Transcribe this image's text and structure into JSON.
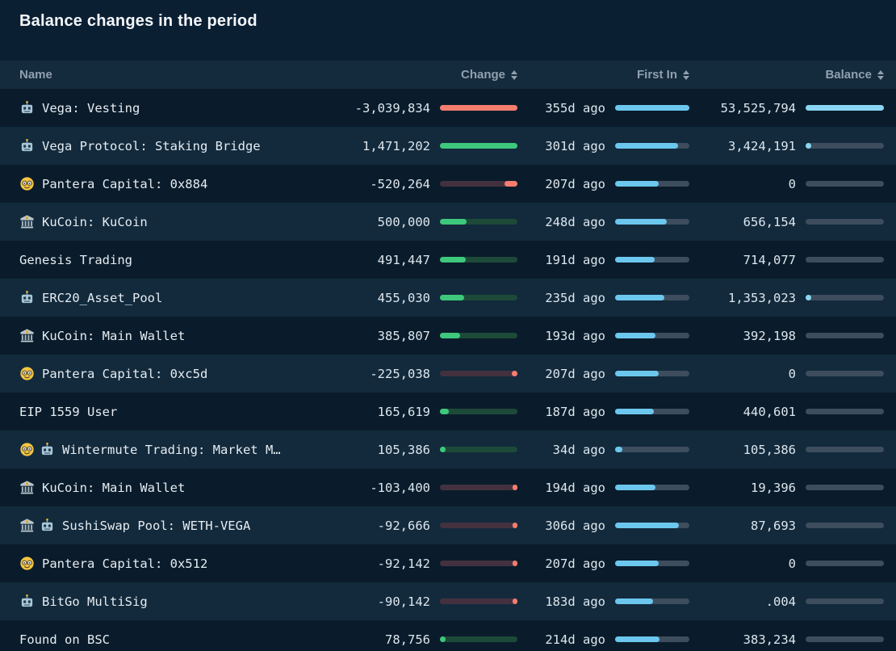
{
  "title": "Balance changes in the period",
  "header": {
    "name": "Name",
    "change": "Change",
    "first_in": "First In",
    "balance": "Balance"
  },
  "colors": {
    "background": "#0b1f33",
    "row_odd": "#0a1c2b",
    "row_even": "#122a3c",
    "header_row": "#142a3d",
    "positive_fill": "#3ec87c",
    "positive_track": "#1d4a38",
    "negative_fill": "#f57d6f",
    "negative_track": "#44313f",
    "first_in_fill": "#6cc7ee",
    "balance_fill": "#8ad5f3",
    "bar_track": "#3d4d5d"
  },
  "table": {
    "scales": {
      "max_positive_change": 1471202,
      "max_negative_change": 3039834,
      "max_first_in_days": 355,
      "max_balance": 53525794
    },
    "rows": [
      {
        "icons": [
          "robot-icon"
        ],
        "name": "Vega: Vesting",
        "change": "-3,039,834",
        "change_value": -3039834,
        "first_in": "355d ago",
        "first_in_days": 355,
        "balance": "53,525,794",
        "balance_value": 53525794
      },
      {
        "icons": [
          "robot-icon"
        ],
        "name": "Vega Protocol: Staking Bridge",
        "change": "1,471,202",
        "change_value": 1471202,
        "first_in": "301d ago",
        "first_in_days": 301,
        "balance": "3,424,191",
        "balance_value": 3424191
      },
      {
        "icons": [
          "nerd-face-icon"
        ],
        "name": "Pantera Capital: 0x884",
        "change": "-520,264",
        "change_value": -520264,
        "first_in": "207d ago",
        "first_in_days": 207,
        "balance": "0",
        "balance_value": 0
      },
      {
        "icons": [
          "bank-icon"
        ],
        "name": "KuCoin: KuCoin",
        "change": "500,000",
        "change_value": 500000,
        "first_in": "248d ago",
        "first_in_days": 248,
        "balance": "656,154",
        "balance_value": 656154
      },
      {
        "icons": [],
        "name": "Genesis Trading",
        "change": "491,447",
        "change_value": 491447,
        "first_in": "191d ago",
        "first_in_days": 191,
        "balance": "714,077",
        "balance_value": 714077
      },
      {
        "icons": [
          "robot-icon"
        ],
        "name": "ERC20_Asset_Pool",
        "change": "455,030",
        "change_value": 455030,
        "first_in": "235d ago",
        "first_in_days": 235,
        "balance": "1,353,023",
        "balance_value": 1353023
      },
      {
        "icons": [
          "bank-icon"
        ],
        "name": "KuCoin: Main Wallet",
        "change": "385,807",
        "change_value": 385807,
        "first_in": "193d ago",
        "first_in_days": 193,
        "balance": "392,198",
        "balance_value": 392198
      },
      {
        "icons": [
          "nerd-face-icon"
        ],
        "name": "Pantera Capital: 0xc5d",
        "change": "-225,038",
        "change_value": -225038,
        "first_in": "207d ago",
        "first_in_days": 207,
        "balance": "0",
        "balance_value": 0
      },
      {
        "icons": [],
        "name": "EIP 1559 User",
        "change": "165,619",
        "change_value": 165619,
        "first_in": "187d ago",
        "first_in_days": 187,
        "balance": "440,601",
        "balance_value": 440601
      },
      {
        "icons": [
          "nerd-face-icon",
          "robot-icon"
        ],
        "name": "Wintermute Trading: Market M…",
        "change": "105,386",
        "change_value": 105386,
        "first_in": "34d ago",
        "first_in_days": 34,
        "balance": "105,386",
        "balance_value": 105386
      },
      {
        "icons": [
          "bank-icon"
        ],
        "name": "KuCoin: Main Wallet",
        "change": "-103,400",
        "change_value": -103400,
        "first_in": "194d ago",
        "first_in_days": 194,
        "balance": "19,396",
        "balance_value": 19396
      },
      {
        "icons": [
          "bank-icon",
          "robot-icon"
        ],
        "name": "SushiSwap Pool: WETH-VEGA",
        "change": "-92,666",
        "change_value": -92666,
        "first_in": "306d ago",
        "first_in_days": 306,
        "balance": "87,693",
        "balance_value": 87693
      },
      {
        "icons": [
          "nerd-face-icon"
        ],
        "name": "Pantera Capital: 0x512",
        "change": "-92,142",
        "change_value": -92142,
        "first_in": "207d ago",
        "first_in_days": 207,
        "balance": "0",
        "balance_value": 0
      },
      {
        "icons": [
          "robot-icon"
        ],
        "name": "BitGo MultiSig",
        "change": "-90,142",
        "change_value": -90142,
        "first_in": "183d ago",
        "first_in_days": 183,
        "balance": ".004",
        "balance_value": 0.004
      },
      {
        "icons": [],
        "name": "Found on BSC",
        "change": "78,756",
        "change_value": 78756,
        "first_in": "214d ago",
        "first_in_days": 214,
        "balance": "383,234",
        "balance_value": 383234
      }
    ]
  }
}
